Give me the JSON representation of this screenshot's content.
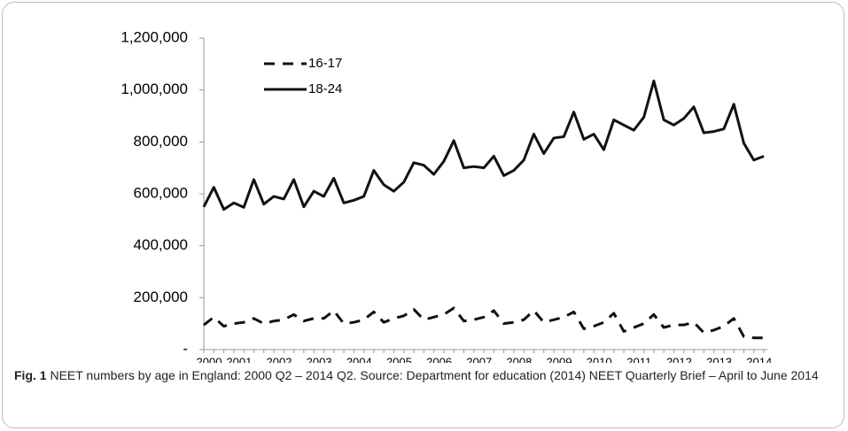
{
  "chart_data": {
    "type": "line",
    "categories": [
      "2000",
      null,
      null,
      "2001",
      null,
      null,
      null,
      "2002",
      null,
      null,
      null,
      "2003",
      null,
      null,
      null,
      "2004",
      null,
      null,
      null,
      "2005",
      null,
      null,
      null,
      "2006",
      null,
      null,
      null,
      "2007",
      null,
      null,
      null,
      "2008",
      null,
      null,
      null,
      "2009",
      null,
      null,
      null,
      "2010",
      null,
      null,
      null,
      "2011",
      null,
      null,
      null,
      "2012",
      null,
      null,
      null,
      "2013",
      null,
      null,
      null,
      "2014",
      null
    ],
    "series": [
      {
        "name": "16-17",
        "color": "#111111",
        "dash": true,
        "values": [
          95000,
          125000,
          90000,
          100000,
          105000,
          120000,
          100000,
          110000,
          115000,
          135000,
          110000,
          120000,
          120000,
          150000,
          100000,
          105000,
          115000,
          145000,
          105000,
          120000,
          130000,
          155000,
          115000,
          125000,
          135000,
          160000,
          110000,
          115000,
          125000,
          150000,
          100000,
          105000,
          115000,
          150000,
          105000,
          115000,
          125000,
          145000,
          80000,
          90000,
          105000,
          140000,
          70000,
          85000,
          100000,
          135000,
          85000,
          95000,
          95000,
          105000,
          65000,
          75000,
          90000,
          120000,
          50000,
          45000,
          45000
        ]
      },
      {
        "name": "18-24",
        "color": "#111111",
        "dash": false,
        "values": [
          550000,
          625000,
          540000,
          565000,
          548000,
          655000,
          560000,
          590000,
          580000,
          655000,
          550000,
          610000,
          590000,
          660000,
          565000,
          575000,
          590000,
          690000,
          635000,
          610000,
          645000,
          720000,
          710000,
          675000,
          725000,
          805000,
          700000,
          705000,
          700000,
          745000,
          670000,
          690000,
          730000,
          830000,
          755000,
          815000,
          820000,
          915000,
          810000,
          830000,
          770000,
          885000,
          865000,
          845000,
          895000,
          1035000,
          885000,
          865000,
          890000,
          935000,
          835000,
          840000,
          850000,
          945000,
          795000,
          730000,
          745000
        ]
      }
    ],
    "ylim": [
      0,
      1200000
    ],
    "yticks": [
      {
        "value": 0,
        "label": "-"
      },
      {
        "value": 200000,
        "label": "200,000"
      },
      {
        "value": 400000,
        "label": "400,000"
      },
      {
        "value": 600000,
        "label": "600,000"
      },
      {
        "value": 800000,
        "label": "800,000"
      },
      {
        "value": 1000000,
        "label": "1,000,000"
      },
      {
        "value": 1200000,
        "label": "1,200,000"
      }
    ],
    "grid": false,
    "legend": "upper left",
    "caption_label": "Fig. 1",
    "caption": "NEET numbers by age in England: 2000 Q2 – 2014 Q2. Source: Department for education (2014) NEET Quarterly Brief – April to June 2014"
  }
}
